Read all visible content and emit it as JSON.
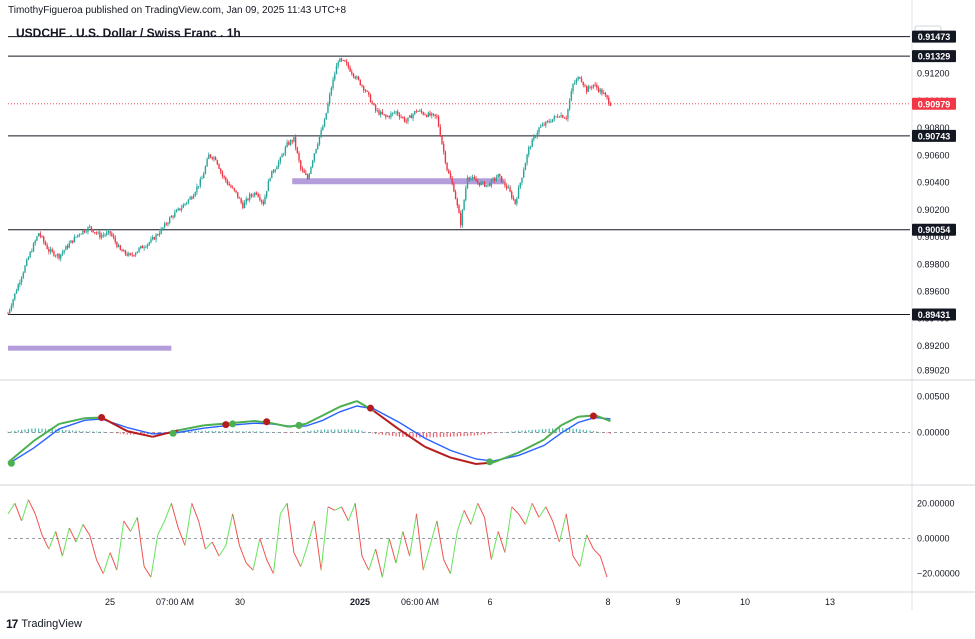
{
  "header": {
    "publisher": "TimothyFigueroa published on TradingView.com, Jan 09, 2025 11:43 UTC+8",
    "title": "USDCHF . U.S. Dollar / Swiss Franc . 1h",
    "currency": "CHF"
  },
  "footer": {
    "logo_text": "TradingView",
    "logo_mark": "17"
  },
  "colors": {
    "up": "#26a69a",
    "up_bright": "#22ab94",
    "down": "#f23645",
    "zone": "#b39ddb",
    "macd_fast": "#4caf50",
    "macd_fast_down": "#b71c1c",
    "macd_slow": "#2962ff",
    "osc_up": "#66e35b",
    "osc_down": "#ef5350",
    "current_price": "#f23645"
  },
  "chart_data": [
    {
      "type": "candlestick",
      "title": "USDCHF . U.S. Dollar / Swiss Franc . 1h",
      "ylim": [
        0.8895,
        0.9158
      ],
      "y_ticks": [
        0.912,
        0.91,
        0.908,
        0.906,
        0.904,
        0.902,
        0.9,
        0.898,
        0.896,
        0.894,
        0.892,
        0.8902
      ],
      "y_tick_labels": [
        "0.91200",
        "0.91000",
        "0.90800",
        "0.90600",
        "0.90400",
        "0.90200",
        "0.90000",
        "0.89800",
        "0.89600",
        "0.89400",
        "0.89200",
        "0.89020"
      ],
      "x_tick_labels": [
        "25",
        "07:00 AM",
        "30",
        "2025",
        "06:00 AM",
        "6",
        "8",
        "9",
        "10",
        "13"
      ],
      "horizontal_levels": [
        {
          "price": 0.91473,
          "label": "0.91473"
        },
        {
          "price": 0.91329,
          "label": "0.91329"
        },
        {
          "price": 0.90743,
          "label": "0.90743"
        },
        {
          "price": 0.90054,
          "label": "0.90054"
        },
        {
          "price": 0.89431,
          "label": "0.89431"
        }
      ],
      "current_price": {
        "price": 0.90979,
        "label": "0.90979"
      },
      "zones": [
        {
          "price": 0.9041,
          "start_fraction": 0.0,
          "end_fraction": 0.27
        },
        {
          "price": 0.8918,
          "start_fraction": 0.0,
          "end_fraction": 0.27
        }
      ],
      "path": [
        [
          0,
          0.8944
        ],
        [
          6,
          0.8965
        ],
        [
          12,
          0.8985
        ],
        [
          18,
          0.9003
        ],
        [
          24,
          0.899
        ],
        [
          30,
          0.8986
        ],
        [
          36,
          0.8995
        ],
        [
          42,
          0.9003
        ],
        [
          48,
          0.9007
        ],
        [
          54,
          0.9001
        ],
        [
          60,
          0.9003
        ],
        [
          66,
          0.899
        ],
        [
          72,
          0.8986
        ],
        [
          78,
          0.8992
        ],
        [
          84,
          0.8997
        ],
        [
          90,
          0.9005
        ],
        [
          96,
          0.9015
        ],
        [
          102,
          0.9022
        ],
        [
          108,
          0.903
        ],
        [
          114,
          0.9043
        ],
        [
          118,
          0.906
        ],
        [
          122,
          0.9058
        ],
        [
          126,
          0.9045
        ],
        [
          130,
          0.9038
        ],
        [
          134,
          0.9032
        ],
        [
          138,
          0.9023
        ],
        [
          142,
          0.903
        ],
        [
          146,
          0.9033
        ],
        [
          150,
          0.9025
        ],
        [
          154,
          0.9045
        ],
        [
          160,
          0.9057
        ],
        [
          164,
          0.9068
        ],
        [
          168,
          0.9072
        ],
        [
          172,
          0.905
        ],
        [
          176,
          0.9043
        ],
        [
          180,
          0.9062
        ],
        [
          186,
          0.9085
        ],
        [
          190,
          0.911
        ],
        [
          194,
          0.913
        ],
        [
          198,
          0.9128
        ],
        [
          204,
          0.9118
        ],
        [
          210,
          0.9108
        ],
        [
          216,
          0.9093
        ],
        [
          222,
          0.9088
        ],
        [
          228,
          0.9092
        ],
        [
          234,
          0.9085
        ],
        [
          240,
          0.9093
        ],
        [
          246,
          0.909
        ],
        [
          252,
          0.9088
        ],
        [
          258,
          0.905
        ],
        [
          262,
          0.9035
        ],
        [
          266,
          0.901
        ],
        [
          270,
          0.9045
        ],
        [
          276,
          0.904
        ],
        [
          282,
          0.9038
        ],
        [
          288,
          0.9045
        ],
        [
          294,
          0.9035
        ],
        [
          298,
          0.9025
        ],
        [
          302,
          0.9045
        ],
        [
          306,
          0.9065
        ],
        [
          312,
          0.908
        ],
        [
          318,
          0.9085
        ],
        [
          324,
          0.909
        ],
        [
          328,
          0.9088
        ],
        [
          332,
          0.9112
        ],
        [
          336,
          0.9118
        ],
        [
          340,
          0.9108
        ],
        [
          344,
          0.9112
        ],
        [
          350,
          0.9105
        ],
        [
          354,
          0.9098
        ]
      ]
    },
    {
      "type": "line",
      "name": "macd_panel",
      "ylim": [
        -0.0065,
        0.0065
      ],
      "y_ticks": [
        0.005,
        0.0
      ],
      "y_tick_labels": [
        "0.00500",
        "0.00000"
      ],
      "series": [
        {
          "name": "fast",
          "values": [
            [
              0,
              -0.0042
            ],
            [
              15,
              -0.0012
            ],
            [
              30,
              0.0012
            ],
            [
              45,
              0.002
            ],
            [
              55,
              0.0021
            ],
            [
              70,
              0.0002
            ],
            [
              85,
              -0.0006
            ],
            [
              100,
              0.0003
            ],
            [
              115,
              0.001
            ],
            [
              130,
              0.0013
            ],
            [
              145,
              0.0016
            ],
            [
              155,
              0.0013
            ],
            [
              165,
              0.0008
            ],
            [
              175,
              0.0012
            ],
            [
              185,
              0.0024
            ],
            [
              195,
              0.0036
            ],
            [
              205,
              0.0044
            ],
            [
              215,
              0.003
            ],
            [
              230,
              0.0004
            ],
            [
              245,
              -0.002
            ],
            [
              260,
              -0.0035
            ],
            [
              275,
              -0.0044
            ],
            [
              285,
              -0.0042
            ],
            [
              300,
              -0.0028
            ],
            [
              315,
              -0.001
            ],
            [
              325,
              0.001
            ],
            [
              335,
              0.0022
            ],
            [
              345,
              0.0024
            ],
            [
              354,
              0.0016
            ]
          ]
        },
        {
          "name": "slow",
          "values": [
            [
              0,
              -0.0044
            ],
            [
              15,
              -0.0022
            ],
            [
              30,
              0.0005
            ],
            [
              45,
              0.0017
            ],
            [
              55,
              0.0019
            ],
            [
              70,
              0.0007
            ],
            [
              85,
              -0.0002
            ],
            [
              100,
              0.0
            ],
            [
              115,
              0.0006
            ],
            [
              130,
              0.001
            ],
            [
              145,
              0.0013
            ],
            [
              155,
              0.0012
            ],
            [
              165,
              0.0009
            ],
            [
              175,
              0.0009
            ],
            [
              185,
              0.0017
            ],
            [
              195,
              0.0029
            ],
            [
              205,
              0.0037
            ],
            [
              215,
              0.0033
            ],
            [
              230,
              0.0014
            ],
            [
              245,
              -0.0008
            ],
            [
              260,
              -0.0025
            ],
            [
              275,
              -0.0037
            ],
            [
              285,
              -0.004
            ],
            [
              300,
              -0.0032
            ],
            [
              315,
              -0.0018
            ],
            [
              325,
              -0.0001
            ],
            [
              335,
              0.0014
            ],
            [
              345,
              0.0021
            ],
            [
              354,
              0.0019
            ]
          ]
        }
      ],
      "cross_markers": [
        {
          "x": 2,
          "value": -0.0043,
          "dir": "up"
        },
        {
          "x": 55,
          "value": 0.0021,
          "dir": "down"
        },
        {
          "x": 97,
          "value": -0.0001,
          "dir": "up"
        },
        {
          "x": 128,
          "value": 0.0011,
          "dir": "down"
        },
        {
          "x": 132,
          "value": 0.0012,
          "dir": "up"
        },
        {
          "x": 152,
          "value": 0.0015,
          "dir": "down"
        },
        {
          "x": 171,
          "value": 0.001,
          "dir": "up"
        },
        {
          "x": 213,
          "value": 0.0034,
          "dir": "down"
        },
        {
          "x": 283,
          "value": -0.0041,
          "dir": "up"
        },
        {
          "x": 344,
          "value": 0.0023,
          "dir": "down"
        }
      ]
    },
    {
      "type": "line",
      "name": "oscillator_panel",
      "ylim": [
        -27,
        27
      ],
      "y_ticks": [
        20,
        0,
        -20
      ],
      "y_tick_labels": [
        "20.00000",
        "0.00000",
        "−20.00000"
      ],
      "values": [
        [
          0,
          14
        ],
        [
          4,
          20
        ],
        [
          8,
          10
        ],
        [
          12,
          22
        ],
        [
          16,
          14
        ],
        [
          20,
          2
        ],
        [
          24,
          -6
        ],
        [
          28,
          4
        ],
        [
          32,
          -10
        ],
        [
          36,
          6
        ],
        [
          40,
          -2
        ],
        [
          44,
          8
        ],
        [
          48,
          2
        ],
        [
          52,
          -12
        ],
        [
          56,
          -20
        ],
        [
          60,
          -8
        ],
        [
          64,
          -18
        ],
        [
          68,
          10
        ],
        [
          72,
          4
        ],
        [
          76,
          12
        ],
        [
          80,
          -16
        ],
        [
          84,
          -22
        ],
        [
          88,
          2
        ],
        [
          92,
          10
        ],
        [
          96,
          20
        ],
        [
          100,
          6
        ],
        [
          104,
          -4
        ],
        [
          108,
          20
        ],
        [
          112,
          10
        ],
        [
          116,
          -6
        ],
        [
          120,
          -2
        ],
        [
          124,
          -10
        ],
        [
          128,
          -4
        ],
        [
          132,
          14
        ],
        [
          136,
          -4
        ],
        [
          140,
          -14
        ],
        [
          144,
          -18
        ],
        [
          148,
          0
        ],
        [
          152,
          -12
        ],
        [
          156,
          -20
        ],
        [
          160,
          14
        ],
        [
          164,
          20
        ],
        [
          168,
          -8
        ],
        [
          172,
          -16
        ],
        [
          176,
          -4
        ],
        [
          180,
          10
        ],
        [
          184,
          -18
        ],
        [
          188,
          18
        ],
        [
          192,
          16
        ],
        [
          196,
          18
        ],
        [
          200,
          10
        ],
        [
          204,
          20
        ],
        [
          208,
          -10
        ],
        [
          212,
          -18
        ],
        [
          216,
          -6
        ],
        [
          220,
          -22
        ],
        [
          224,
          0
        ],
        [
          228,
          -14
        ],
        [
          232,
          4
        ],
        [
          236,
          -10
        ],
        [
          240,
          14
        ],
        [
          244,
          -18
        ],
        [
          248,
          -4
        ],
        [
          252,
          10
        ],
        [
          256,
          -12
        ],
        [
          260,
          -20
        ],
        [
          264,
          4
        ],
        [
          268,
          16
        ],
        [
          272,
          8
        ],
        [
          276,
          20
        ],
        [
          280,
          12
        ],
        [
          284,
          -12
        ],
        [
          288,
          4
        ],
        [
          292,
          -8
        ],
        [
          296,
          18
        ],
        [
          300,
          14
        ],
        [
          304,
          8
        ],
        [
          308,
          20
        ],
        [
          312,
          12
        ],
        [
          316,
          18
        ],
        [
          320,
          10
        ],
        [
          324,
          -2
        ],
        [
          328,
          14
        ],
        [
          332,
          -10
        ],
        [
          336,
          -16
        ],
        [
          340,
          2
        ],
        [
          344,
          -6
        ],
        [
          348,
          -10
        ],
        [
          352,
          -22
        ]
      ]
    }
  ]
}
